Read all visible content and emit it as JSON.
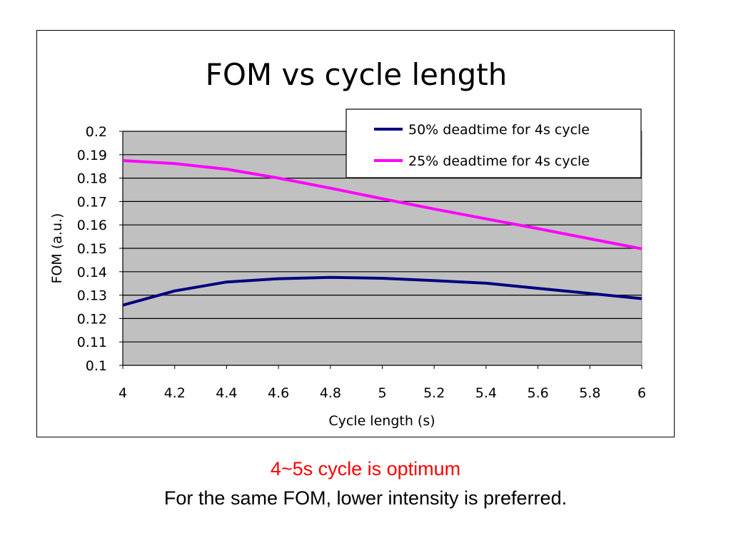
{
  "chart_data": {
    "type": "line",
    "title": "FOM vs cycle length",
    "xlabel": "Cycle length (s)",
    "ylabel": "FOM (a.u.)",
    "x": [
      4,
      4.2,
      4.4,
      4.6,
      4.8,
      5,
      5.2,
      5.4,
      5.6,
      5.8,
      6
    ],
    "x_tick_labels": [
      "4",
      "4.2",
      "4.4",
      "4.6",
      "4.8",
      "5",
      "5.2",
      "5.4",
      "5.6",
      "5.8",
      "6"
    ],
    "y_tick_labels": [
      "0.1",
      "0.11",
      "0.12",
      "0.13",
      "0.14",
      "0.15",
      "0.16",
      "0.17",
      "0.18",
      "0.19",
      "0.2"
    ],
    "xlim": [
      4,
      6
    ],
    "ylim": [
      0.1,
      0.2
    ],
    "grid": "horizontal",
    "legend_position": "top-right",
    "plot_background": "#c0c0c0",
    "series": [
      {
        "name": "50% deadtime for 4s cycle",
        "color": "#000080",
        "values": [
          0.1257,
          0.1318,
          0.1356,
          0.137,
          0.1376,
          0.1372,
          0.1362,
          0.1351,
          0.1329,
          0.1307,
          0.1285
        ]
      },
      {
        "name": "25% deadtime for 4s cycle",
        "color": "#ff00ff",
        "values": [
          0.1875,
          0.1862,
          0.1838,
          0.18,
          0.1757,
          0.1712,
          0.1668,
          0.1626,
          0.1584,
          0.1541,
          0.1498
        ]
      }
    ]
  },
  "captions": {
    "highlight": "4~5s cycle is optimum",
    "note": "For the same FOM, lower intensity is preferred."
  }
}
